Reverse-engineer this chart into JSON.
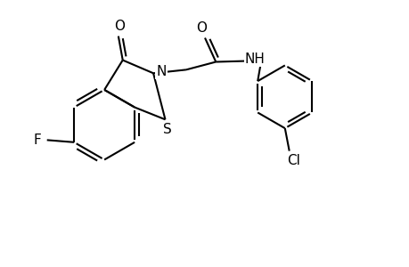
{
  "background_color": "#ffffff",
  "line_color": "#000000",
  "line_width": 1.5,
  "figsize": [
    4.6,
    3.0
  ],
  "dpi": 100,
  "xlim": [
    0,
    9.2
  ],
  "ylim": [
    0,
    6.0
  ]
}
